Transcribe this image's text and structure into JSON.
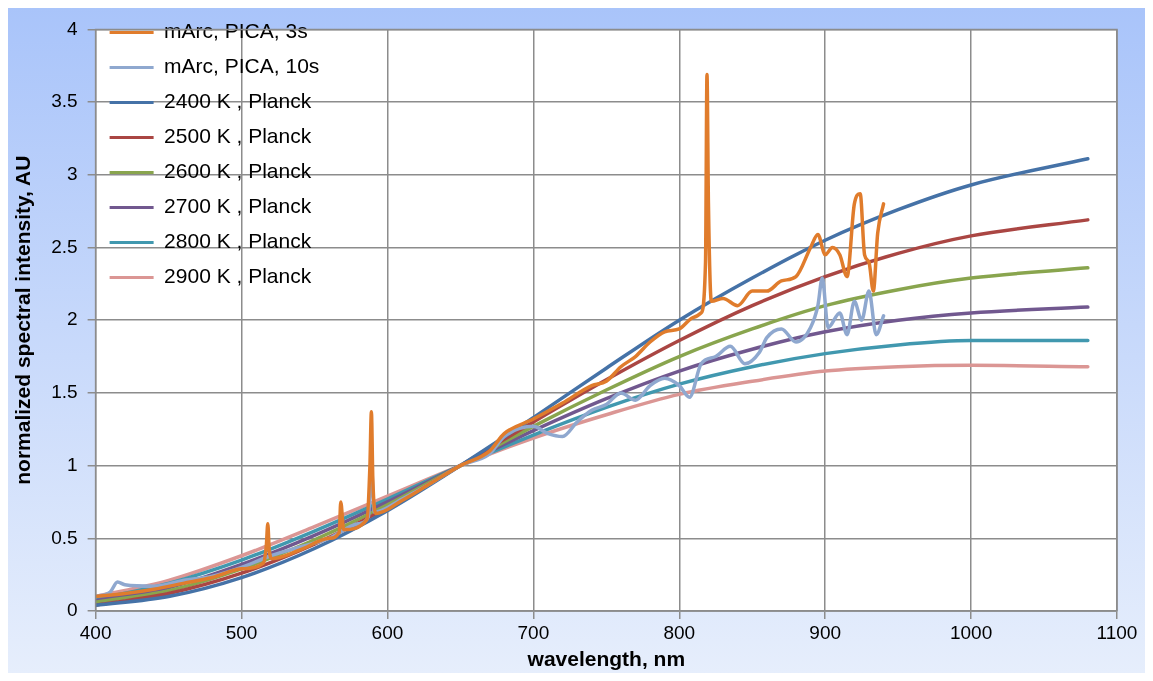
{
  "chart_data": {
    "type": "line",
    "xlabel": "wavelength, nm",
    "ylabel": "normalized spectral intensity, AU",
    "xlim": [
      400,
      1100
    ],
    "xticks": [
      400,
      500,
      600,
      700,
      800,
      900,
      1000,
      1100
    ],
    "ylim": [
      0,
      4
    ],
    "yticks": [
      0,
      0.5,
      1,
      1.5,
      2,
      2.5,
      3,
      3.5,
      4
    ],
    "grid": true,
    "legend": "top left",
    "marker": "none",
    "line_style": "solid",
    "series": [
      {
        "name": "mArc, PICA, 3s",
        "color": "#e07c2c",
        "x": [
          400,
          420,
          440,
          460,
          480,
          500,
          515,
          517,
          518,
          519,
          521,
          540,
          560,
          567,
          568,
          570,
          586,
          588,
          589,
          590,
          592,
          610,
          630,
          650,
          670,
          680,
          700,
          720,
          740,
          750,
          760,
          770,
          780,
          790,
          800,
          810,
          815,
          818,
          819,
          820,
          822,
          830,
          840,
          850,
          860,
          870,
          880,
          890,
          895,
          900,
          905,
          910,
          915,
          920,
          924,
          927,
          930,
          933,
          936,
          940
        ],
        "values": [
          0.1,
          0.12,
          0.15,
          0.19,
          0.23,
          0.29,
          0.33,
          0.45,
          0.6,
          0.42,
          0.36,
          0.42,
          0.5,
          0.54,
          0.75,
          0.56,
          0.63,
          1.0,
          1.37,
          0.9,
          0.67,
          0.76,
          0.88,
          1.0,
          1.1,
          1.22,
          1.32,
          1.43,
          1.55,
          1.58,
          1.68,
          1.75,
          1.85,
          1.92,
          1.94,
          2.02,
          2.05,
          2.4,
          3.69,
          2.8,
          2.13,
          2.15,
          2.1,
          2.2,
          2.2,
          2.27,
          2.3,
          2.5,
          2.59,
          2.45,
          2.5,
          2.45,
          2.3,
          2.8,
          2.87,
          2.45,
          2.4,
          2.2,
          2.6,
          2.8
        ]
      },
      {
        "name": "mArc, PICA, 10s",
        "color": "#8fa8cf",
        "x": [
          400,
          410,
          415,
          420,
          440,
          460,
          480,
          500,
          520,
          540,
          560,
          580,
          587,
          589,
          591,
          610,
          630,
          650,
          670,
          680,
          700,
          710,
          720,
          730,
          740,
          750,
          760,
          770,
          780,
          790,
          800,
          807,
          815,
          825,
          835,
          845,
          855,
          860,
          870,
          880,
          890,
          895,
          898,
          902,
          910,
          915,
          920,
          925,
          930,
          935,
          940
        ],
        "values": [
          0.1,
          0.13,
          0.2,
          0.18,
          0.17,
          0.21,
          0.24,
          0.3,
          0.38,
          0.44,
          0.5,
          0.6,
          0.65,
          1.0,
          0.68,
          0.77,
          0.88,
          1.0,
          1.08,
          1.2,
          1.27,
          1.22,
          1.2,
          1.3,
          1.38,
          1.42,
          1.5,
          1.45,
          1.55,
          1.6,
          1.55,
          1.47,
          1.7,
          1.75,
          1.82,
          1.7,
          1.78,
          1.88,
          1.94,
          1.85,
          1.95,
          2.1,
          2.29,
          1.95,
          2.05,
          1.9,
          2.13,
          2.0,
          2.2,
          1.9,
          2.03
        ]
      },
      {
        "name": "2400 K , Planck",
        "color": "#4572a7",
        "x": [
          400,
          450,
          500,
          550,
          600,
          650,
          700,
          750,
          800,
          850,
          900,
          950,
          1000,
          1080
        ],
        "values": [
          0.04,
          0.1,
          0.23,
          0.43,
          0.69,
          1.0,
          1.33,
          1.67,
          2.0,
          2.29,
          2.55,
          2.76,
          2.93,
          3.11
        ]
      },
      {
        "name": "2500 K , Planck",
        "color": "#aa4643",
        "x": [
          400,
          450,
          500,
          550,
          600,
          650,
          700,
          750,
          800,
          850,
          900,
          950,
          1000,
          1080
        ],
        "values": [
          0.04,
          0.12,
          0.26,
          0.46,
          0.71,
          1.0,
          1.3,
          1.59,
          1.86,
          2.1,
          2.3,
          2.46,
          2.58,
          2.69
        ]
      },
      {
        "name": "2600 K , Planck",
        "color": "#89a54e",
        "x": [
          400,
          450,
          500,
          550,
          600,
          650,
          700,
          750,
          800,
          850,
          900,
          950,
          1000,
          1080
        ],
        "values": [
          0.06,
          0.14,
          0.29,
          0.49,
          0.73,
          1.0,
          1.27,
          1.52,
          1.75,
          1.94,
          2.1,
          2.21,
          2.29,
          2.36
        ]
      },
      {
        "name": "2700 K , Planck",
        "color": "#71588f",
        "x": [
          400,
          450,
          500,
          550,
          600,
          650,
          700,
          750,
          800,
          850,
          900,
          950,
          1000,
          1080
        ],
        "values": [
          0.07,
          0.16,
          0.32,
          0.52,
          0.75,
          1.0,
          1.24,
          1.46,
          1.65,
          1.8,
          1.92,
          2.0,
          2.05,
          2.09
        ]
      },
      {
        "name": "2800 K , Planck",
        "color": "#4198af",
        "x": [
          400,
          450,
          500,
          550,
          600,
          650,
          700,
          750,
          800,
          850,
          900,
          950,
          1000,
          1080
        ],
        "values": [
          0.08,
          0.19,
          0.35,
          0.55,
          0.77,
          1.0,
          1.21,
          1.4,
          1.56,
          1.68,
          1.77,
          1.83,
          1.86,
          1.86
        ]
      },
      {
        "name": "2900 K , Planck",
        "color": "#db9694",
        "x": [
          400,
          450,
          500,
          550,
          600,
          650,
          700,
          750,
          800,
          850,
          900,
          950,
          1000,
          1080
        ],
        "values": [
          0.1,
          0.21,
          0.38,
          0.58,
          0.79,
          1.0,
          1.19,
          1.35,
          1.49,
          1.58,
          1.65,
          1.68,
          1.69,
          1.68
        ]
      }
    ]
  }
}
